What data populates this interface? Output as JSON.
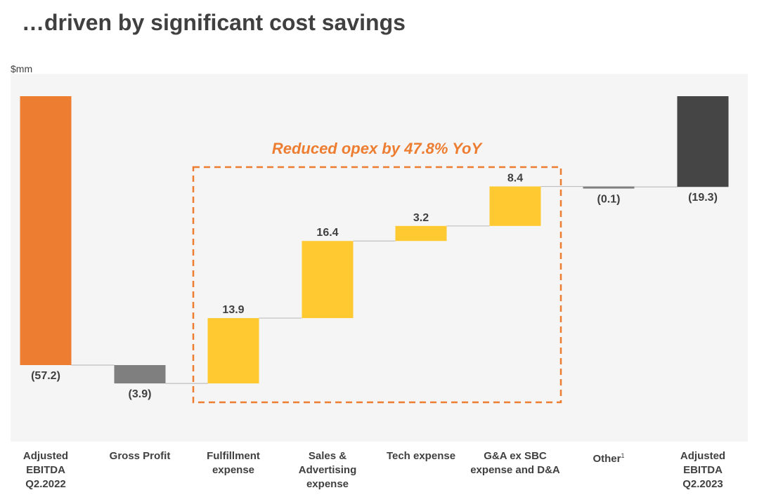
{
  "title": "…driven by significant cost savings",
  "unit_label": "$mm",
  "colors": {
    "start_bar": "#ED7D31",
    "decrease_bar": "#7F7F7F",
    "increase_bar": "#FFC931",
    "end_bar": "#454545",
    "connector": "#BFBFBF",
    "annotation": "#ED7D31",
    "plot_background": "#F5F5F5",
    "text": "#404040"
  },
  "chart_data": {
    "type": "bar",
    "subtype": "waterfall",
    "categories": [
      "Adjusted EBITDA Q2.2022",
      "Gross Profit",
      "Fulfillment expense",
      "Sales & Advertising expense",
      "Tech expense",
      "G&A ex SBC expense and D&A",
      "Other",
      "Adjusted EBITDA Q2.2023"
    ],
    "category_lines": [
      [
        "Adjusted",
        "EBITDA",
        "Q2.2022"
      ],
      [
        "Gross Profit"
      ],
      [
        "Fulfillment",
        "expense"
      ],
      [
        "Sales &",
        "Advertising",
        "expense"
      ],
      [
        "Tech expense"
      ],
      [
        "G&A ex SBC",
        "expense and D&A"
      ],
      [
        "Other"
      ],
      [
        "Adjusted",
        "EBITDA",
        "Q2.2023"
      ]
    ],
    "category_footnotes": [
      "",
      "",
      "",
      "",
      "",
      "",
      "1",
      ""
    ],
    "values": [
      -57.2,
      -3.9,
      13.9,
      16.4,
      3.2,
      8.4,
      -0.1,
      -19.3
    ],
    "measures": [
      "absolute",
      "relative",
      "relative",
      "relative",
      "relative",
      "relative",
      "relative",
      "total"
    ],
    "data_labels": [
      "(57.2)",
      "(3.9)",
      "13.9",
      "16.4",
      "3.2",
      "8.4",
      "(0.1)",
      "(19.3)"
    ],
    "unit": "$mm",
    "annotation": {
      "text": "Reduced opex by 47.8% YoY",
      "spans_categories": [
        "Fulfillment expense",
        "Sales & Advertising expense",
        "Tech expense",
        "G&A ex SBC expense and D&A"
      ]
    },
    "ylim": [
      -62,
      0
    ],
    "grid": false,
    "legend": "none"
  }
}
